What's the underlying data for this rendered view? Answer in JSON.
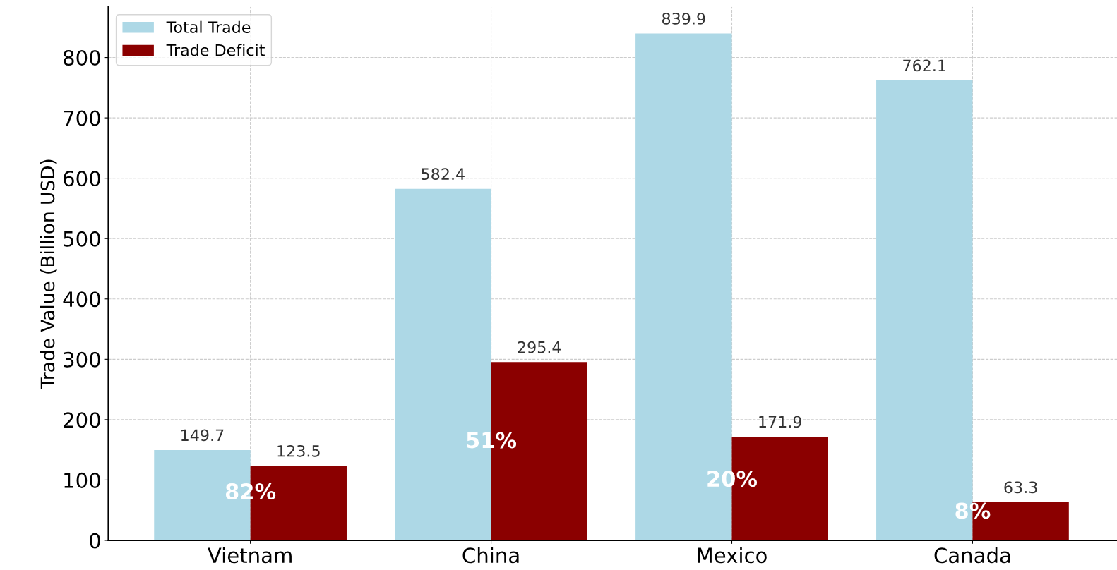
{
  "chart_data": {
    "type": "bar",
    "ylabel": "Trade Value (Billion USD)",
    "categories": [
      "Vietnam",
      "China",
      "Mexico",
      "Canada"
    ],
    "series": [
      {
        "name": "Total Trade",
        "color": "#add8e6",
        "values": [
          149.7,
          582.4,
          839.9,
          762.1
        ]
      },
      {
        "name": "Trade Deficit",
        "color": "#8b0000",
        "values": [
          123.5,
          295.4,
          171.9,
          63.3
        ]
      }
    ],
    "data_labels": true,
    "annotations": [
      {
        "text": "82%",
        "x": "Vietnam",
        "y": 78
      },
      {
        "text": "51%",
        "x": "China",
        "y": 163
      },
      {
        "text": "20%",
        "x": "Mexico",
        "y": 99
      },
      {
        "text": "8%",
        "x": "Canada",
        "y": 46
      }
    ],
    "ylim": [
      0,
      884
    ],
    "yticks": [
      0,
      100,
      200,
      300,
      400,
      500,
      600,
      700,
      800
    ],
    "grid": true,
    "legend": "top left"
  }
}
